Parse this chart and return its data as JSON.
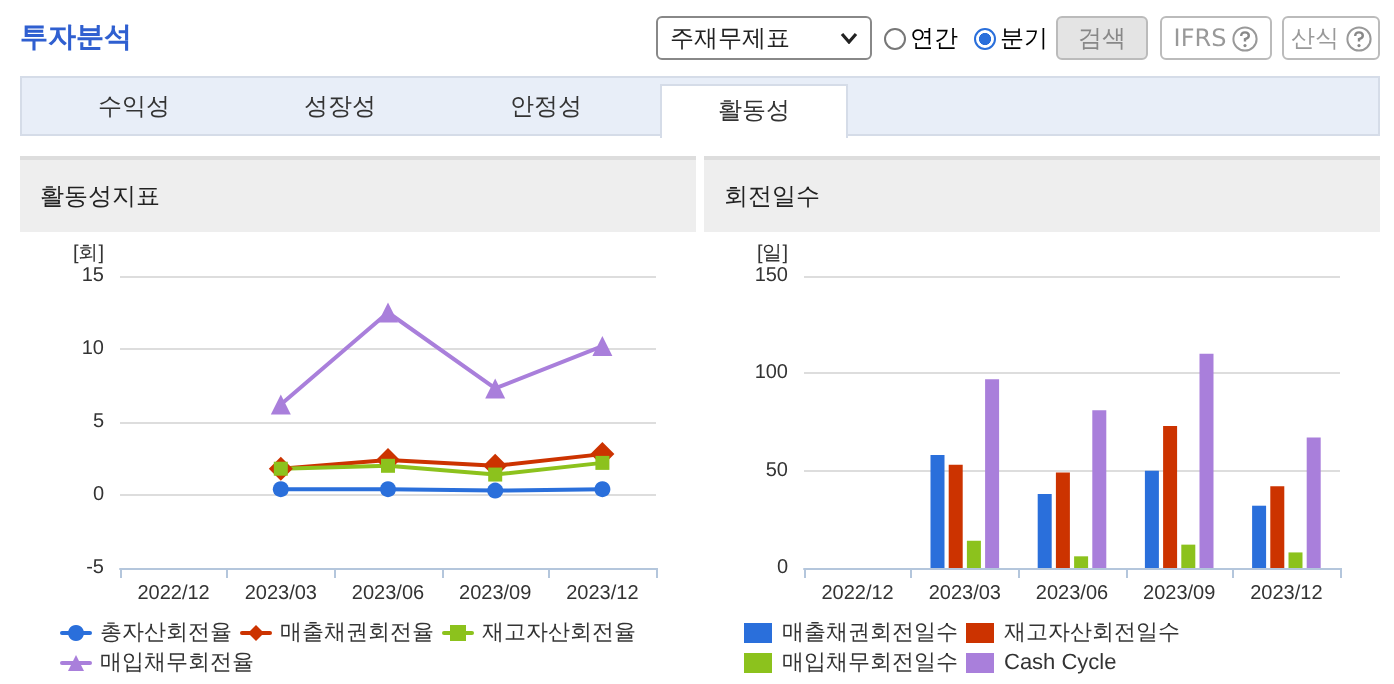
{
  "chart_data": [
    {
      "type": "other",
      "title": "투자분석",
      "annotations": [
        "주재무제표",
        "연간",
        "분기",
        "검색",
        "IFRS",
        "산식",
        "수익성",
        "성장성",
        "안정성",
        "활동성"
      ]
    },
    {
      "type": "line",
      "title": "활동성지표",
      "ylabel": "[회]",
      "categories": [
        "2022/12",
        "2023/03",
        "2023/06",
        "2023/09",
        "2023/12"
      ],
      "ylim": [
        -5,
        15
      ],
      "yticks": [
        -5,
        0,
        5,
        10,
        15
      ],
      "grid": "y",
      "legend": "bottom",
      "series": [
        {
          "name": "총자산회전율",
          "color": "#2a6fdb",
          "marker": "circle",
          "values": [
            null,
            0.4,
            0.4,
            0.3,
            0.4
          ]
        },
        {
          "name": "매출채권회전율",
          "color": "#cc3300",
          "marker": "diamond",
          "values": [
            null,
            1.8,
            2.4,
            2.0,
            2.8
          ]
        },
        {
          "name": "재고자산회전율",
          "color": "#8cc21d",
          "marker": "square",
          "values": [
            null,
            1.8,
            2.0,
            1.4,
            2.2
          ]
        },
        {
          "name": "매입채무회전율",
          "color": "#a97fdb",
          "marker": "triangle",
          "values": [
            null,
            6.2,
            12.5,
            7.3,
            10.2
          ]
        }
      ]
    },
    {
      "type": "bar",
      "title": "회전일수",
      "ylabel": "[일]",
      "categories": [
        "2022/12",
        "2023/03",
        "2023/06",
        "2023/09",
        "2023/12"
      ],
      "ylim": [
        0,
        150
      ],
      "yticks": [
        0,
        50,
        100,
        150
      ],
      "grid": "y",
      "legend": "bottom",
      "series": [
        {
          "name": "매출채권회전일수",
          "color": "#2a6fdb",
          "values": [
            null,
            58,
            38,
            50,
            32
          ]
        },
        {
          "name": "재고자산회전일수",
          "color": "#cc3300",
          "values": [
            null,
            53,
            49,
            73,
            42
          ]
        },
        {
          "name": "매입채무회전일수",
          "color": "#8cc21d",
          "values": [
            null,
            14,
            6,
            12,
            8
          ]
        },
        {
          "name": "Cash Cycle",
          "color": "#a97fdb",
          "values": [
            null,
            97,
            81,
            110,
            67
          ]
        }
      ]
    }
  ]
}
